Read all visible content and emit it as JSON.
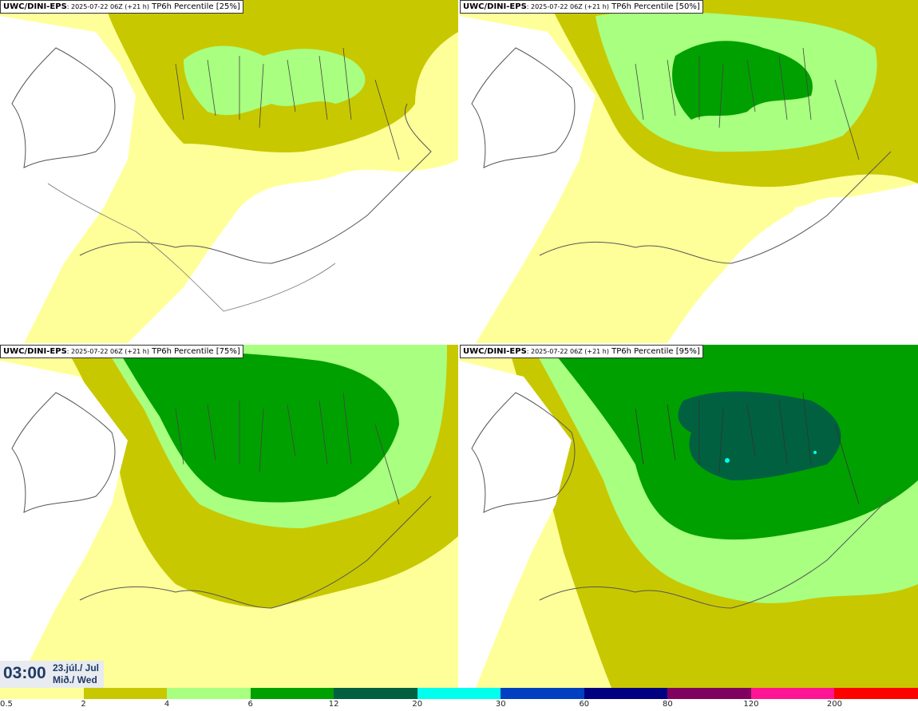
{
  "panels": [
    {
      "model": "UWC/DINI-EPS",
      "run": ": 2025-07-22 06Z (+21 h)",
      "param": " TP6h Percentile [25%]"
    },
    {
      "model": "UWC/DINI-EPS",
      "run": ": 2025-07-22 06Z (+21 h)",
      "param": " TP6h Percentile [50%]"
    },
    {
      "model": "UWC/DINI-EPS",
      "run": ": 2025-07-22 06Z (+21 h)",
      "param": " TP6h Percentile [75%]"
    },
    {
      "model": "UWC/DINI-EPS",
      "run": ": 2025-07-22 06Z (+21 h)",
      "param": " TP6h Percentile [95%]"
    }
  ],
  "valid": {
    "time": "03:00",
    "date_line1": "23.júl./ Jul",
    "date_line2": "Mið./ Wed"
  },
  "legend": {
    "labels": [
      "0.5",
      "2",
      "4",
      "6",
      "12",
      "20",
      "30",
      "60",
      "80",
      "120",
      "200"
    ],
    "colors": [
      "#ffff99",
      "#c8c800",
      "#a8ff80",
      "#00a000",
      "#006040",
      "#00ffee",
      "#0040c0",
      "#000080",
      "#800060",
      "#ff1493",
      "#ff0000"
    ]
  },
  "map_colors": {
    "land_outline": "#555555",
    "level1": "#ffff99",
    "level2": "#c8c800",
    "level3": "#a8ff80",
    "level4": "#00a000",
    "level5": "#006040",
    "level6": "#00ffee"
  }
}
